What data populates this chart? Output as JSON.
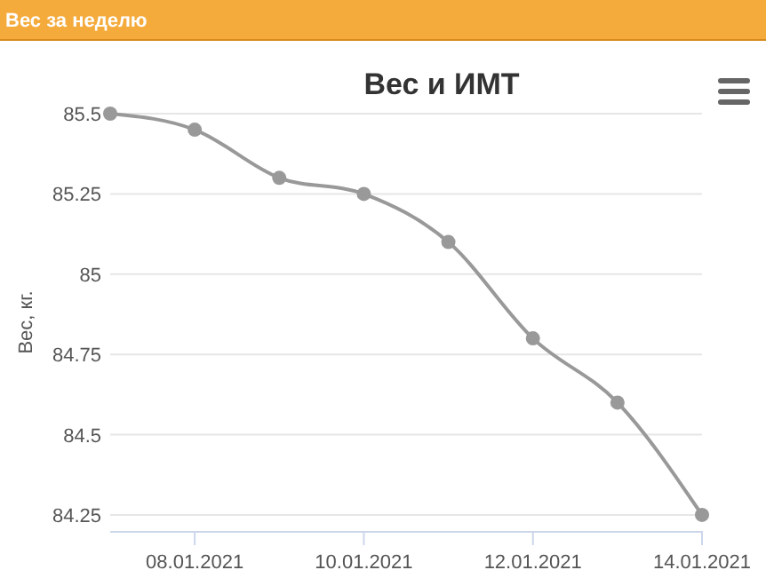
{
  "chart_data": {
    "type": "line",
    "title": "Вес за неделю",
    "subtitle": "Вес и ИМТ",
    "ylabel": "Вес, кг.",
    "x": [
      "2021-01-07",
      "2021-01-08",
      "2021-01-09",
      "2021-01-10",
      "2021-01-11",
      "2021-01-12",
      "2021-01-13",
      "2021-01-14"
    ],
    "series": [
      {
        "color": "#999999",
        "values": [
          85.5,
          85.45,
          85.3,
          85.25,
          85.1,
          84.8,
          84.6,
          84.25
        ]
      }
    ],
    "xlim": [
      "2021-01-07",
      "2021-01-14"
    ],
    "xticks": [
      {
        "value": "2021-01-08",
        "label": "08.01.2021"
      },
      {
        "value": "2021-01-10",
        "label": "10.01.2021"
      },
      {
        "value": "2021-01-12",
        "label": "12.01.2021"
      },
      {
        "value": "2021-01-14",
        "label": "14.01.2021"
      }
    ],
    "ylim": [
      84.2,
      85.5
    ],
    "yticks": [
      84.25,
      84.5,
      84.75,
      85,
      85.25,
      85.5
    ],
    "grid": "y",
    "marker": "circle",
    "line_style": "solid"
  }
}
